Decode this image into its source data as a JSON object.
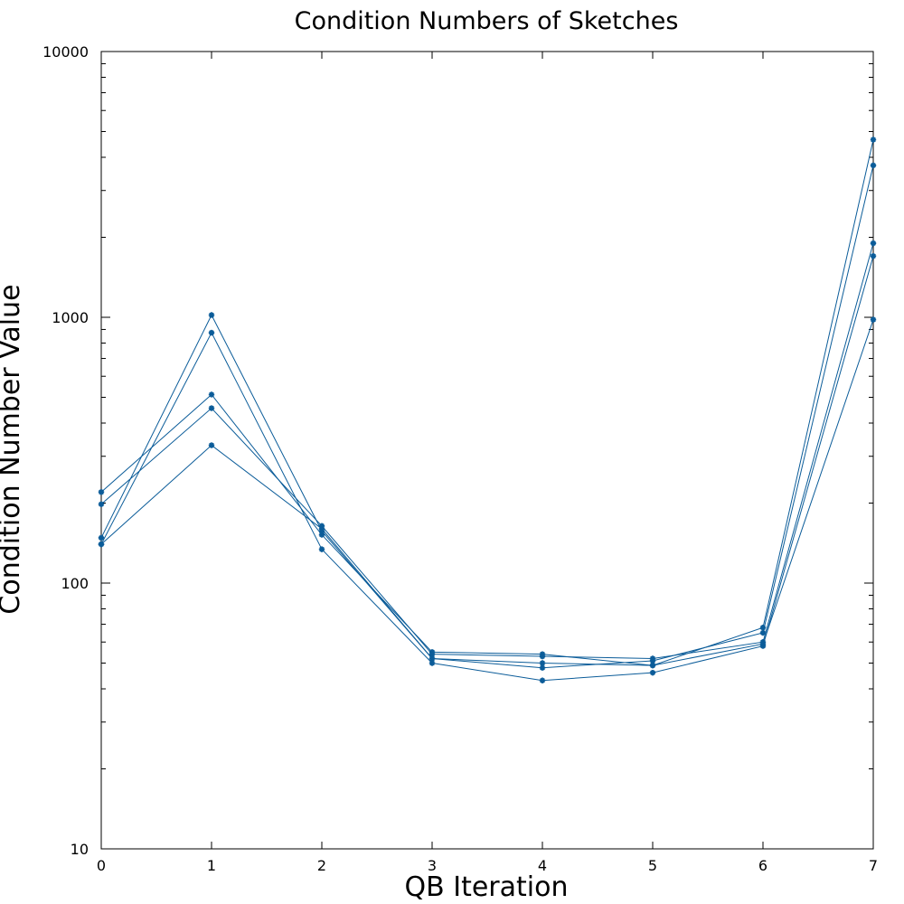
{
  "chart_data": {
    "type": "line",
    "title": "Condition Numbers of Sketches",
    "xlabel": "QB Iteration",
    "ylabel": "Condition Number Value",
    "xlim": [
      0,
      7
    ],
    "ylim": [
      10,
      10000
    ],
    "y_scale": "log",
    "grid": false,
    "legend": "none",
    "marker": "star",
    "x": [
      0,
      1,
      2,
      3,
      4,
      5,
      6,
      7
    ],
    "x_tick_labels": [
      "0",
      "1",
      "2",
      "3",
      "4",
      "5",
      "6",
      "7"
    ],
    "y_tick_values": [
      10,
      100,
      1000,
      10000
    ],
    "y_tick_labels": [
      "10",
      "100",
      "1000",
      "10000"
    ],
    "series": [
      {
        "values": [
          220,
          512,
          152,
          55,
          54,
          49,
          68,
          4660
        ]
      },
      {
        "values": [
          148,
          1020,
          157,
          52,
          48,
          51,
          65,
          3730
        ]
      },
      {
        "values": [
          198,
          455,
          164,
          54,
          53,
          52,
          60,
          1900
        ]
      },
      {
        "values": [
          140,
          875,
          134,
          50,
          43,
          46,
          58,
          1700
        ]
      },
      {
        "values": [
          140,
          330,
          160,
          52,
          50,
          49,
          59,
          980
        ]
      }
    ],
    "colors": {
      "line": "#0b5c99",
      "axis": "#000000"
    }
  }
}
